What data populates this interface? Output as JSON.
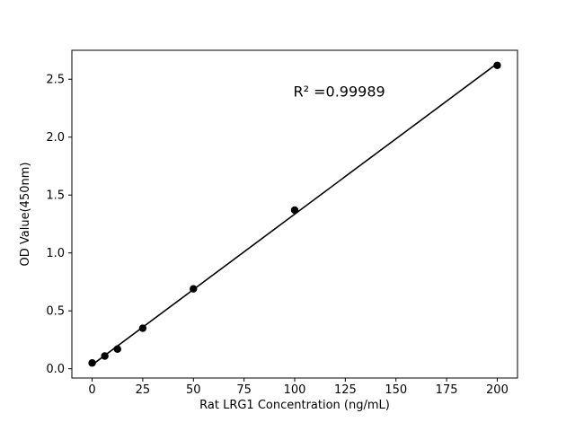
{
  "chart_data": {
    "type": "scatter",
    "title": "",
    "xlabel": "Rat LRG1 Concentration (ng/mL)",
    "ylabel": "OD Value(450nm)",
    "annotation": {
      "text": "R² =0.99989",
      "x": 122,
      "y": 2.35
    },
    "x": [
      0,
      6.25,
      12.5,
      25,
      50,
      100,
      200
    ],
    "y": [
      0.05,
      0.11,
      0.17,
      0.35,
      0.69,
      1.37,
      2.62
    ],
    "trendline": {
      "x": [
        0,
        200
      ],
      "y": [
        0.034,
        2.636
      ]
    },
    "xticks": [
      0,
      25,
      50,
      75,
      100,
      125,
      150,
      175,
      200
    ],
    "xtick_labels": [
      "0",
      "25",
      "50",
      "75",
      "100",
      "125",
      "150",
      "175",
      "200"
    ],
    "yticks": [
      0.0,
      0.5,
      1.0,
      1.5,
      2.0,
      2.5
    ],
    "ytick_labels": [
      "0.0",
      "0.5",
      "1.0",
      "1.5",
      "2.0",
      "2.5"
    ],
    "xlim": [
      -10,
      210
    ],
    "ylim": [
      -0.08,
      2.75
    ],
    "grid": false,
    "legend": null,
    "marker_color": "#000000",
    "line_color": "#000000",
    "background_color": "#ffffff"
  }
}
